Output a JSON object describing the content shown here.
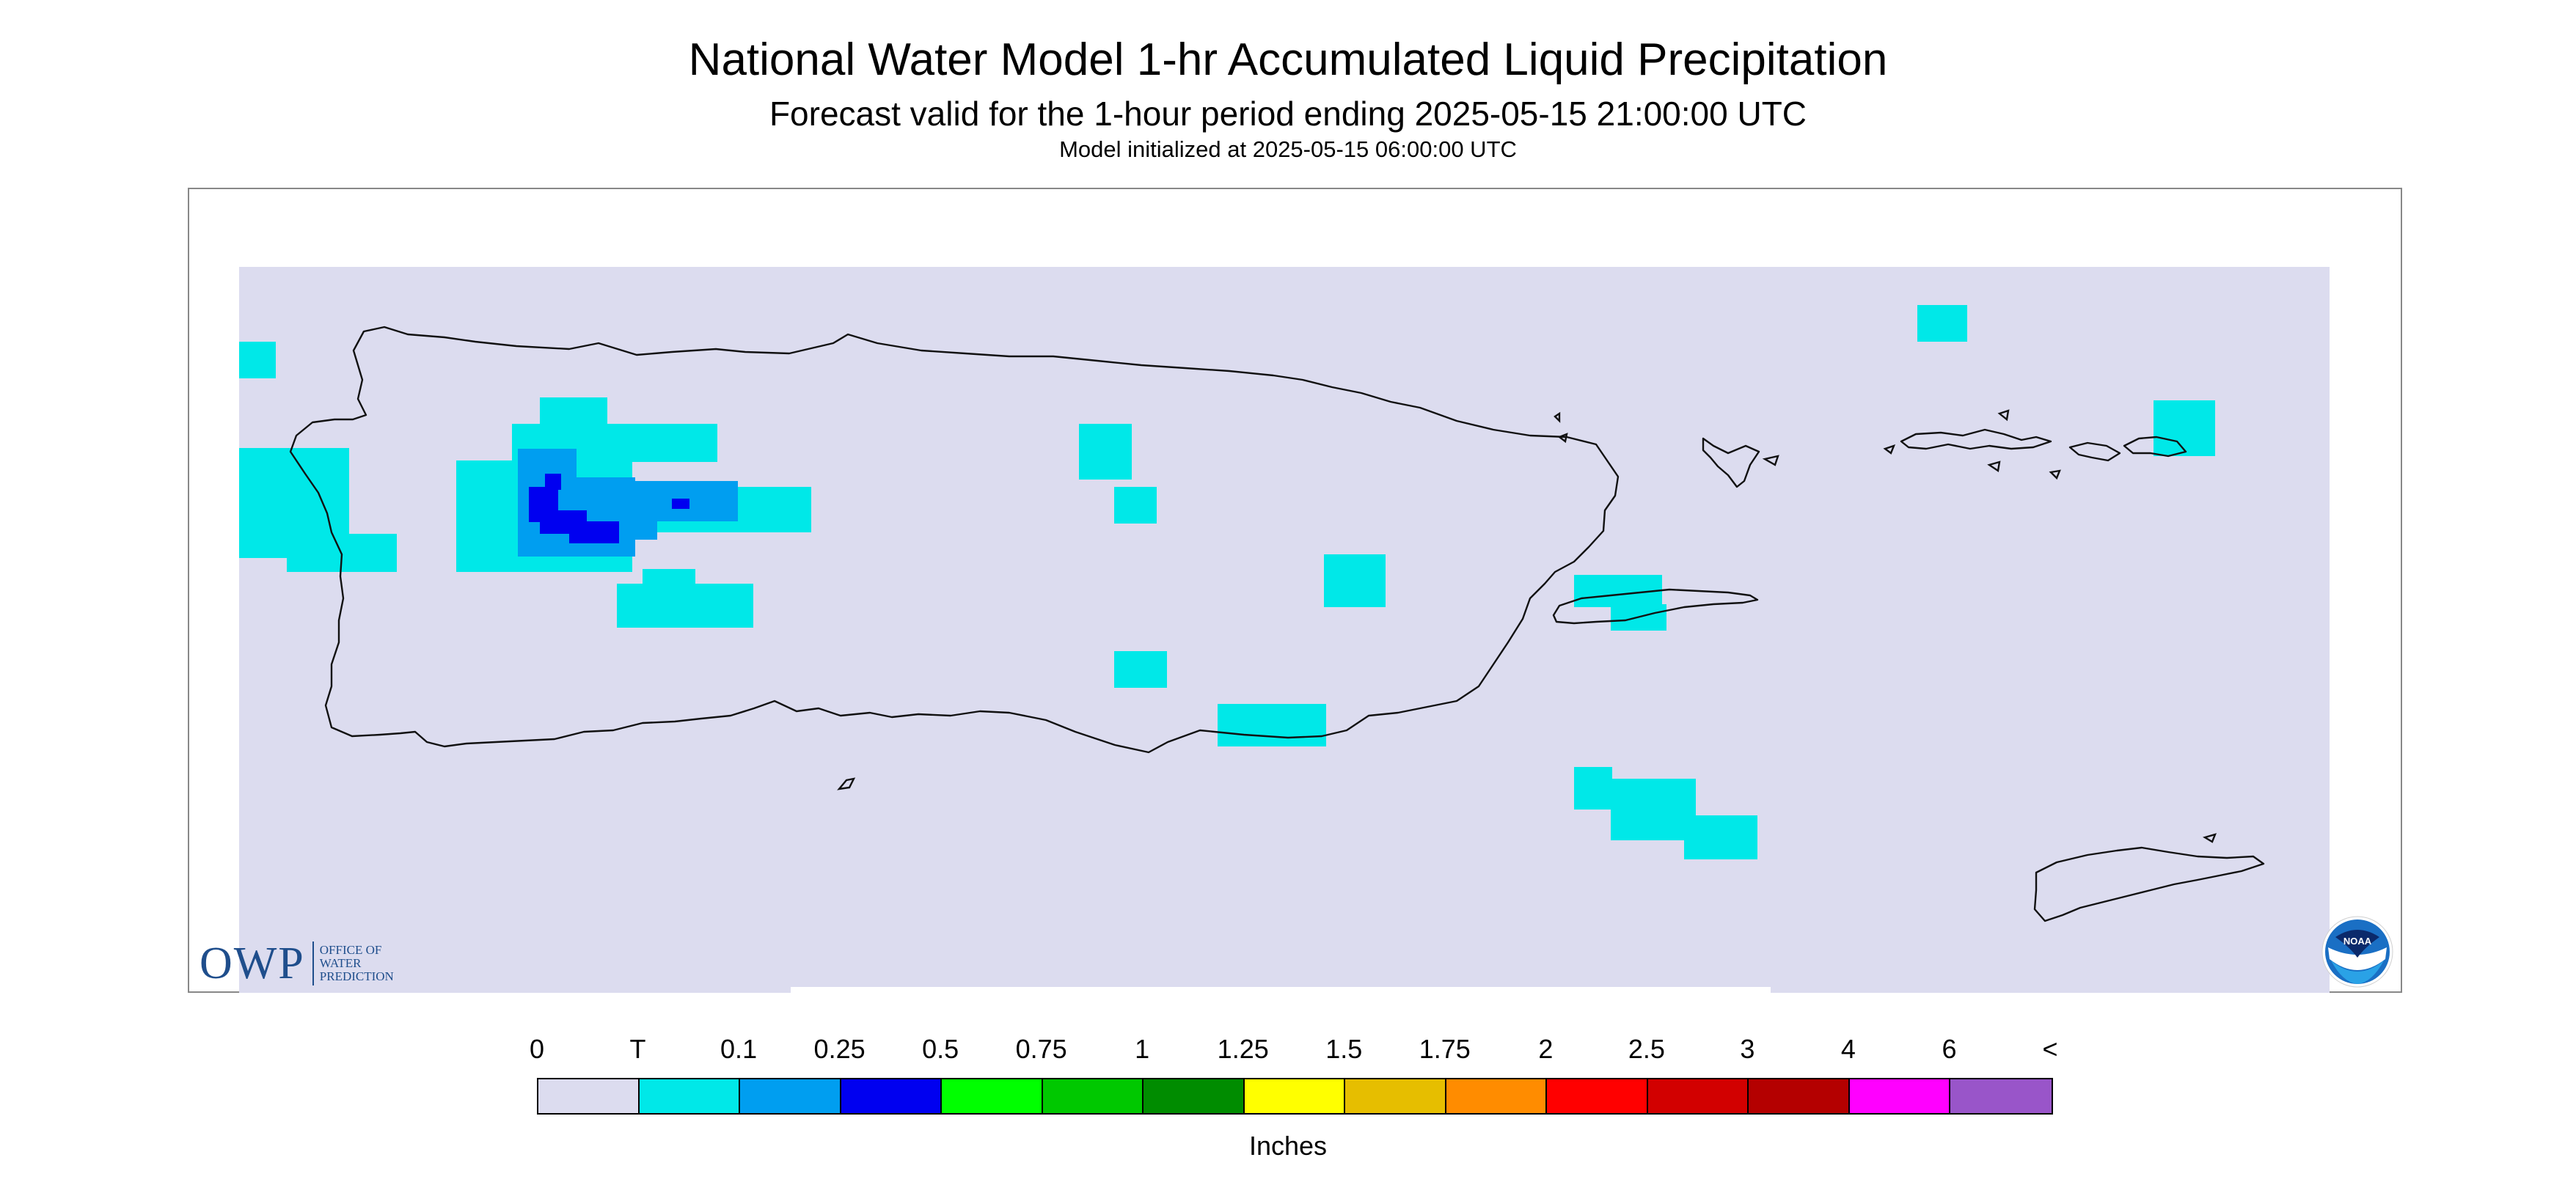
{
  "title": "National Water Model 1-hr Accumulated Liquid Precipitation",
  "subtitle": "Forecast valid for the 1-hour period ending 2025-05-15 21:00:00 UTC",
  "model_init": "Model initialized at 2025-05-15 06:00:00 UTC",
  "legend": {
    "labels": [
      "0",
      "T",
      "0.1",
      "0.25",
      "0.5",
      "0.75",
      "1",
      "1.25",
      "1.5",
      "1.75",
      "2",
      "2.5",
      "3",
      "4",
      "6",
      "<"
    ],
    "colors": [
      "#dcdcef",
      "#00e8e8",
      "#009ef0",
      "#0000f0",
      "#00ff00",
      "#00c800",
      "#008c00",
      "#ffff00",
      "#e6be00",
      "#ff8c00",
      "#ff0000",
      "#d20000",
      "#b40000",
      "#ff00ff",
      "#9955c9"
    ],
    "units": "Inches"
  },
  "colors": {
    "background_field": "#dcdcef",
    "trace": "#00e8e8",
    "light": "#009ef0",
    "moderate": "#0000f0"
  },
  "logos": {
    "owp_big": "OWP",
    "owp_small": "OFFICE OF WATER PREDICTION",
    "noaa": "NOAA"
  }
}
